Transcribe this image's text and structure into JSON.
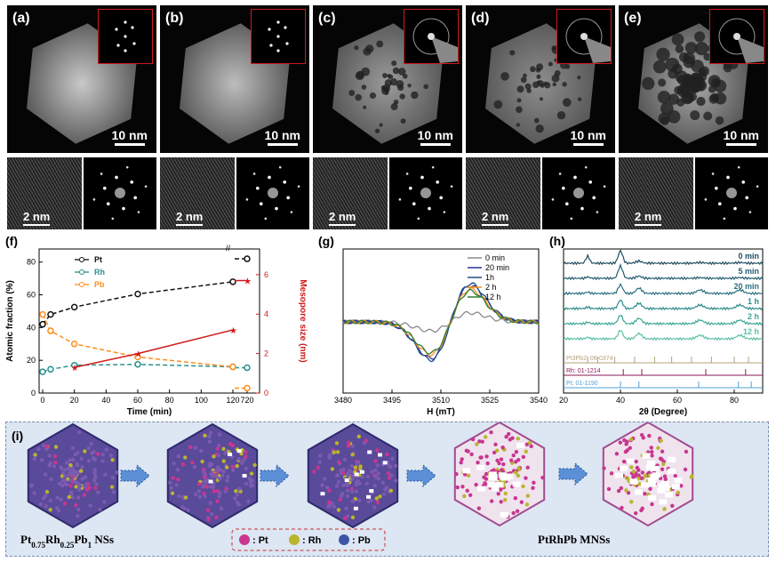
{
  "top_panels": [
    {
      "label": "(a)",
      "scale": "10 nm"
    },
    {
      "label": "(b)",
      "scale": "10 nm"
    },
    {
      "label": "(c)",
      "scale": "10 nm"
    },
    {
      "label": "(d)",
      "scale": "10 nm"
    },
    {
      "label": "(e)",
      "scale": "10 nm"
    }
  ],
  "hr_panels": [
    {
      "scale": "2 nm"
    },
    {
      "scale": "2 nm"
    },
    {
      "scale": "2 nm"
    },
    {
      "scale": "2 nm"
    },
    {
      "scale": "2 nm"
    }
  ],
  "colors": {
    "pt": "#111111",
    "rh": "#2a8f8f",
    "pb": "#ff8c1a",
    "mesopore": "#d11a1a"
  },
  "chart_data": [
    {
      "panel": "(f)",
      "type": "line",
      "xlabel": "Time (min)",
      "ylabel": "Atomic fraction (%)",
      "y2label": "Mesopore size (nm)",
      "xticks": [
        "0",
        "20",
        "40",
        "60",
        "80",
        "100",
        "120",
        "720"
      ],
      "yticks": [
        0,
        20,
        40,
        60,
        80
      ],
      "y2ticks": [
        0,
        2,
        4,
        6
      ],
      "ylim": [
        0,
        88
      ],
      "y2lim": [
        0,
        7.3
      ],
      "series": [
        {
          "name": "Pt",
          "x": [
            0,
            5,
            20,
            60,
            120,
            720
          ],
          "values": [
            42,
            48,
            52.5,
            60.5,
            68,
            82
          ]
        },
        {
          "name": "Rh",
          "x": [
            0,
            5,
            20,
            60,
            120,
            720
          ],
          "values": [
            13,
            14.5,
            17,
            17.5,
            16,
            15.5
          ]
        },
        {
          "name": "Pb",
          "x": [
            0,
            5,
            20,
            60,
            120,
            720
          ],
          "values": [
            48,
            38,
            30,
            22,
            16,
            3
          ]
        },
        {
          "name": "Mesopore",
          "axis": "right",
          "x": [
            20,
            60,
            120,
            720
          ],
          "values": [
            1.3,
            2,
            3.2,
            5.7
          ]
        }
      ]
    },
    {
      "panel": "(g)",
      "type": "line",
      "xlabel": "H (mT)",
      "xticks": [
        "3480",
        "3495",
        "3510",
        "3525",
        "3540"
      ],
      "xlim": [
        3480,
        3540
      ],
      "series": [
        {
          "name": "0 min",
          "color": "#8a8a8a"
        },
        {
          "name": "20 min",
          "color": "#283593"
        },
        {
          "name": "1h",
          "color": "#1f4e8c"
        },
        {
          "name": "2 h",
          "color": "#ff8c1a"
        },
        {
          "name": "12 h",
          "color": "#2e7d32"
        }
      ]
    },
    {
      "panel": "(h)",
      "type": "line",
      "xlabel": "2θ (Degree)",
      "xticks": [
        "20",
        "40",
        "60",
        "80"
      ],
      "xlim": [
        20,
        90
      ],
      "series": [
        {
          "name": "0 min"
        },
        {
          "name": "5 min"
        },
        {
          "name": "20 min"
        },
        {
          "name": "1 h"
        },
        {
          "name": "2 h"
        },
        {
          "name": "12 h"
        }
      ],
      "references": [
        {
          "name": "Pt3Pb2: 06-0374",
          "color": "#b5a07a"
        },
        {
          "name": "Rh: 01-1214",
          "color": "#8b1a5a"
        },
        {
          "name": "Pt: 01-1190",
          "color": "#4fa3d8"
        }
      ]
    }
  ],
  "panel_i": {
    "label": "(i)",
    "left_caption_parts": [
      "Pt",
      "0.75",
      "Rh",
      "0.25",
      "Pb",
      "1",
      " NSs"
    ],
    "right_caption": "PtRhPb MNSs",
    "legend": [
      {
        "symbol": "Pt",
        "label": ": Pt",
        "color": "#c8368f"
      },
      {
        "symbol": "Rh",
        "label": ": Rh",
        "color": "#b9b52c"
      },
      {
        "symbol": "Pb",
        "label": ": Pb",
        "color": "#3e55a6"
      }
    ]
  }
}
